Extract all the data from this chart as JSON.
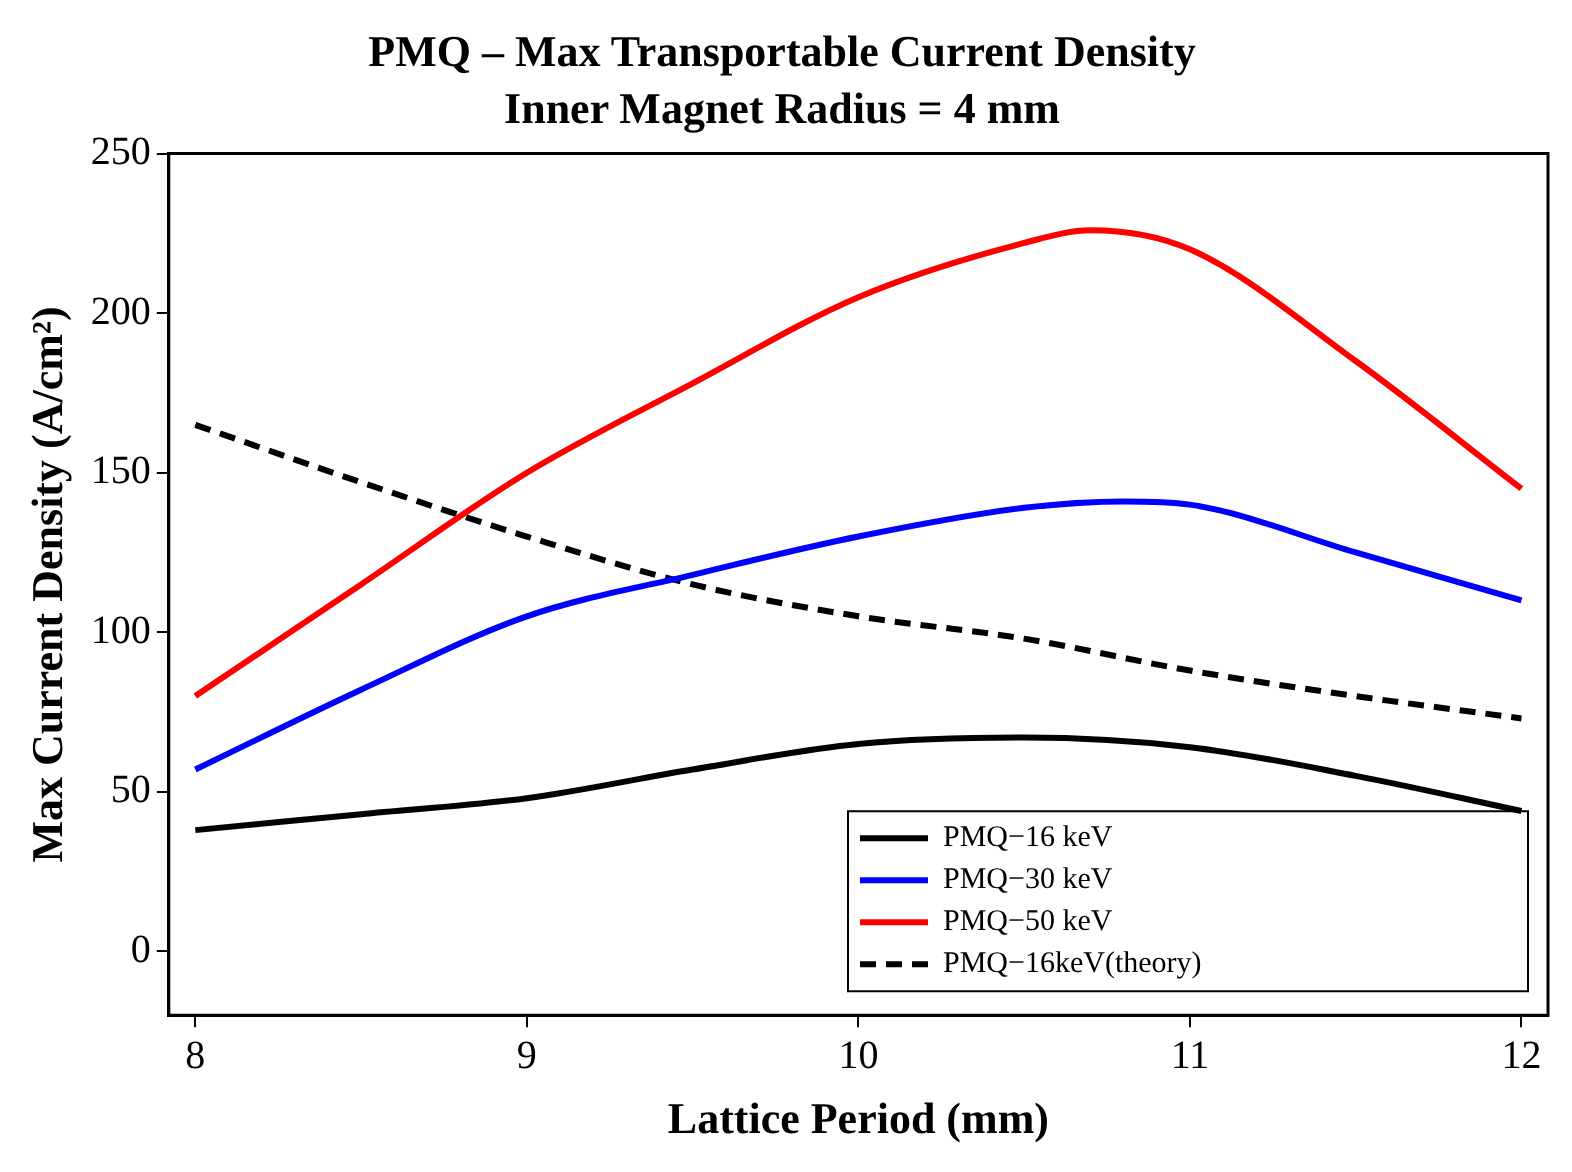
{
  "chart_data": {
    "type": "line",
    "title": "PMQ – Max Transportable Current Density",
    "subtitle": "Inner Magnet Radius = 4 mm",
    "xlabel": "Lattice Period (mm)",
    "ylabel": "Max Current Density (A/cm²)",
    "xlim": [
      7.92,
      12.08
    ],
    "xticks": [
      8,
      9,
      10,
      11,
      12
    ],
    "ylim": [
      -20,
      250
    ],
    "yticks": [
      0,
      50,
      100,
      150,
      200,
      250
    ],
    "grid": false,
    "legend": "bottom right",
    "marker": "none",
    "series": [
      {
        "name": "PMQ−16 keV",
        "color": "#000000",
        "x": [
          8,
          8.5,
          9,
          9.5,
          10,
          10.5,
          11,
          11.5,
          12
        ],
        "values": [
          38,
          43,
          48,
          57,
          65,
          67,
          64,
          55,
          44
        ]
      },
      {
        "name": "PMQ−30 keV",
        "color": "#0000ff",
        "x": [
          8,
          8.5,
          9,
          9.5,
          10,
          10.5,
          10.8,
          11,
          11.5,
          12
        ],
        "values": [
          57,
          82,
          105,
          118,
          130,
          139,
          141,
          140,
          125,
          110
        ]
      },
      {
        "name": "PMQ−50 keV",
        "color": "#ff0000",
        "x": [
          8,
          8.5,
          9,
          9.5,
          10,
          10.5,
          10.7,
          11,
          11.5,
          12
        ],
        "values": [
          80,
          115,
          150,
          178,
          205,
          222,
          226,
          220,
          185,
          145
        ]
      },
      {
        "name": "PMQ−16keV(theory)",
        "color": "#000000",
        "line_style": "dashed",
        "x": [
          8,
          8.5,
          9,
          9.5,
          10,
          10.5,
          11,
          11.5,
          12
        ],
        "values": [
          165,
          147,
          130,
          115,
          105,
          98,
          88,
          80,
          73
        ]
      }
    ]
  }
}
